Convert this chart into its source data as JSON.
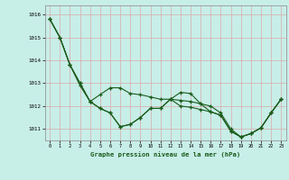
{
  "title": "Graphe pression niveau de la mer (hPa)",
  "bg_color": "#c8eee8",
  "grid_color": "#daaaaa",
  "line_color": "#1a5c1a",
  "marker_color": "#1a5c1a",
  "xlim": [
    -0.5,
    23.5
  ],
  "ylim": [
    1010.5,
    1016.4
  ],
  "yticks": [
    1011,
    1012,
    1013,
    1014,
    1015,
    1016
  ],
  "xticks": [
    0,
    1,
    2,
    3,
    4,
    5,
    6,
    7,
    8,
    9,
    10,
    11,
    12,
    13,
    14,
    15,
    16,
    17,
    18,
    19,
    20,
    21,
    22,
    23
  ],
  "series": [
    [
      1015.8,
      1015.0,
      1013.8,
      1013.0,
      1012.2,
      1011.9,
      1011.7,
      1011.1,
      1011.2,
      1011.5,
      1011.9,
      1011.9,
      1012.3,
      1012.0,
      1011.95,
      1011.85,
      1011.75,
      1011.6,
      1010.9,
      1010.65,
      1010.8,
      1011.05,
      1011.7,
      1012.3
    ],
    [
      1015.8,
      1015.0,
      1013.8,
      1013.0,
      1012.2,
      1012.5,
      1012.8,
      1012.8,
      1012.55,
      1012.5,
      1012.4,
      1012.3,
      1012.3,
      1012.25,
      1012.2,
      1012.1,
      1012.0,
      1011.7,
      1011.0,
      1010.65,
      1010.8,
      1011.05,
      1011.7,
      1012.3
    ],
    [
      1015.8,
      1015.0,
      1013.8,
      1012.9,
      1012.2,
      1011.9,
      1011.7,
      1011.1,
      1011.2,
      1011.5,
      1011.9,
      1011.9,
      1012.3,
      1012.6,
      1012.55,
      1012.1,
      1011.75,
      1011.6,
      1010.9,
      1010.65,
      1010.8,
      1011.05,
      1011.7,
      1012.3
    ]
  ]
}
